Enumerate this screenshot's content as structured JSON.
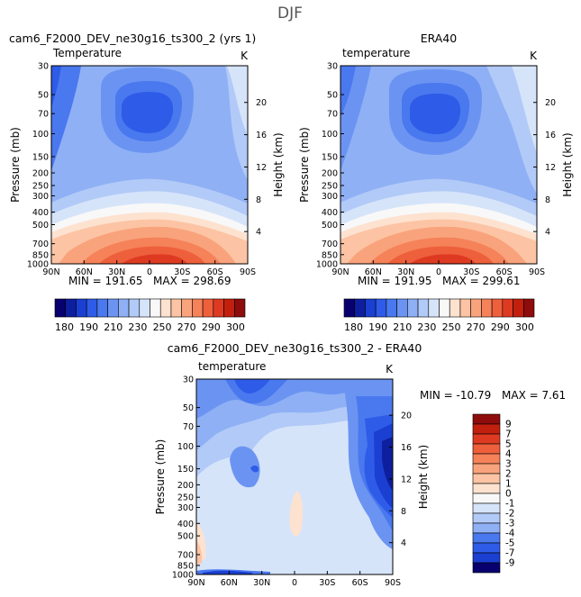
{
  "figure": {
    "season": "DJF"
  },
  "panels": {
    "model": {
      "case_title": "cam6_F2000_DEV_ne30g16_ts300_2 (yrs 1)",
      "variable": "Temperature",
      "units": "K",
      "min_label": "MIN = 191.65",
      "max_label": "MAX = 298.69"
    },
    "obs": {
      "case_title": "ERA40",
      "variable": "temperature",
      "units": "K",
      "min_label": "MIN = 191.95",
      "max_label": "MAX = 299.61"
    },
    "diff": {
      "case_title": "cam6_F2000_DEV_ne30g16_ts300_2 - ERA40",
      "variable": "temperature",
      "units": "K",
      "min_label": "MIN = -10.79",
      "max_label": "MAX =    7.61"
    }
  },
  "colorbars": {
    "abs_labels": [
      "180",
      "190",
      "210",
      "230",
      "250",
      "270",
      "290",
      "300"
    ],
    "abs_colors": [
      "#08006e",
      "#0d1f9e",
      "#1a3fd1",
      "#2e5ce8",
      "#4a78ee",
      "#6b94f2",
      "#8fb0f5",
      "#b2caf7",
      "#d6e4fa",
      "#f8f8f8",
      "#fde2d0",
      "#fcc4a4",
      "#f9a37c",
      "#f58259",
      "#ee5f3b",
      "#de3a22",
      "#c2200f",
      "#8e0c0c"
    ],
    "diff_labels": [
      "9",
      "7",
      "5",
      "4",
      "3",
      "2",
      "1",
      "0",
      "-1",
      "-2",
      "-3",
      "-4",
      "-5",
      "-7",
      "-9"
    ],
    "diff_colors": [
      "#8e0c0c",
      "#c2200f",
      "#de3a22",
      "#ee5f3b",
      "#f58259",
      "#f9a37c",
      "#fcc4a4",
      "#fde2d0",
      "#f8f8f8",
      "#d6e4fa",
      "#b2caf7",
      "#8fb0f5",
      "#4a78ee",
      "#2e5ce8",
      "#1a3fd1",
      "#08006e"
    ]
  },
  "chart_data": [
    {
      "type": "heatmap",
      "title": "cam6_F2000_DEV_ne30g16_ts300_2 (yrs 1)",
      "subtitle": "Temperature",
      "units": "K",
      "xlabel": "",
      "ylabel": "Pressure (mb)",
      "ylabel_right": "Height (km)",
      "x_ticks": [
        "90N",
        "60N",
        "30N",
        "0",
        "30S",
        "60S",
        "90S"
      ],
      "y_ticks": [
        "30",
        "50",
        "70",
        "100",
        "150",
        "200",
        "250",
        "300",
        "400",
        "500",
        "700",
        "850",
        "1000"
      ],
      "y_right_ticks": [
        "20",
        "16",
        "12",
        "8",
        "4"
      ],
      "min": 191.65,
      "max": 298.69
    },
    {
      "type": "heatmap",
      "title": "ERA40",
      "subtitle": "temperature",
      "units": "K",
      "xlabel": "",
      "ylabel": "Pressure (mb)",
      "ylabel_right": "Height (km)",
      "x_ticks": [
        "90N",
        "60N",
        "30N",
        "0",
        "30S",
        "60S",
        "90S"
      ],
      "y_ticks": [
        "30",
        "50",
        "70",
        "100",
        "150",
        "200",
        "250",
        "300",
        "400",
        "500",
        "700",
        "850",
        "1000"
      ],
      "y_right_ticks": [
        "20",
        "16",
        "12",
        "8",
        "4"
      ],
      "min": 191.95,
      "max": 299.61
    },
    {
      "type": "heatmap",
      "title": "cam6_F2000_DEV_ne30g16_ts300_2 - ERA40",
      "subtitle": "temperature",
      "units": "K",
      "xlabel": "",
      "ylabel": "Pressure (mb)",
      "ylabel_right": "Height (km)",
      "x_ticks": [
        "90N",
        "60N",
        "30N",
        "0",
        "30S",
        "60S",
        "90S"
      ],
      "y_ticks": [
        "30",
        "50",
        "70",
        "100",
        "150",
        "200",
        "250",
        "300",
        "400",
        "500",
        "700",
        "850",
        "1000"
      ],
      "y_right_ticks": [
        "20",
        "16",
        "12",
        "8",
        "4"
      ],
      "min": -10.79,
      "max": 7.61
    }
  ]
}
